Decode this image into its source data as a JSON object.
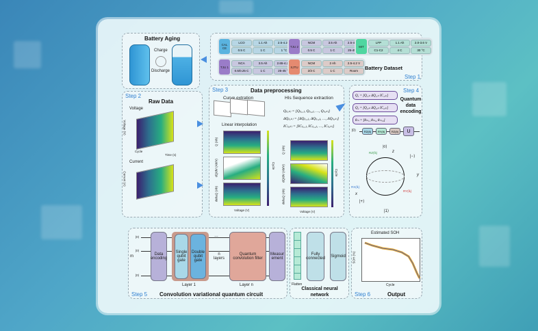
{
  "colors": {
    "accent": "#2f7fd0",
    "arrow": "#4a8fe0",
    "encoding": "#b7b1d9",
    "single_gate": "#a9d8e8",
    "double_gate": "#6bb3df",
    "filter": "#e0a79a",
    "layer_bg": "#c89a8c",
    "nn": "#bfe0e8",
    "flatten": "#b6ead6"
  },
  "step1": {
    "title": "Battery Dataset",
    "step": "Step 1",
    "datasets": [
      {
        "name": "CAL CE",
        "color": "#5ab3df",
        "cells": [
          "LCO",
          "1.1 Ah",
          "2.5-4.2 V",
          "0.5 C",
          "1 C",
          "1 °C"
        ]
      },
      {
        "name": "TJU 2",
        "color": "#9a7cc8",
        "cells": [
          "NCM",
          "3.5 Ah",
          "2.5-4.2 V",
          "0.5 C",
          "1 C",
          "25-45 °C"
        ]
      },
      {
        "name": "MIT",
        "color": "#4fd6a0",
        "cells": [
          "LFP",
          "1.1 Ah",
          "2.0-3.6 V",
          "C1-C2",
          "4 C",
          "30 °C"
        ]
      },
      {
        "name": "TJU 1",
        "color": "#9a7cc8",
        "cells": [
          "NCA",
          "3.5 Ah",
          "2.65-4.2 V",
          "0.5/0.25 C",
          "1 C",
          "25-45 °C"
        ]
      },
      {
        "name": "XJTU",
        "color": "#e58a70",
        "cells": [
          "NCM",
          "2 Ah",
          "2.5-4.2 V",
          "2/3 C",
          "1 C",
          "Room"
        ]
      }
    ]
  },
  "aging": {
    "title": "Battery Aging",
    "charge": "Charge",
    "discharge": "Discharge"
  },
  "step2": {
    "step": "Step 2",
    "title": "Raw Data",
    "voltage": "Voltage",
    "current": "Current",
    "ylabel_v": "Voltage (V)",
    "ylabel_i": "Current (A)",
    "cycle": "Cycle",
    "time": "Time (s)"
  },
  "step3": {
    "step": "Step 3",
    "title": "Data preprocessing",
    "curve": "Curve extration",
    "interp": "Linear interpolation",
    "his": "HIs Sequence extraction",
    "eqs": [
      "Q₍ᵢ,ₖ₎ = [Q₍ᵢ,₁₎, Q₍ᵢ,₂₎, …, Q₍ᵢ,ₖ₎]",
      "ΔQ₍ᵢ,ₖ₎ = [ΔQ₍ᵢ,₁₎, ΔQ₍ᵢ,₂₎, …, ΔQ₍ᵢ,ₖ₎]",
      "IC₍ᵢ,ₖ₎ = [IC₍ᵢ,₁₎, IC₍ᵢ,₂₎, …, IC₍ᵢ,ₖ₎]"
    ],
    "ylabels": [
      "Q (Ah)",
      "dQ/dV (Ah/V)",
      "deltaQ (Ah)"
    ],
    "xlabel": "Voltage (V)",
    "cbar": "Cycle"
  },
  "step4": {
    "step": "Step 4",
    "title": "Quantum data encoding",
    "rows": [
      "Q₁ = [Q₁,ₖ  ΔQ₁,ₖ  IC₁,ₖ]",
      "Q₂ = [Q₂,ₖ  ΔQ₂,ₖ  IC₂,ₖ]",
      "θₘ = [θₘ,₁  θₘ,₂  θₘ,₃]"
    ],
    "ket0": "|0⟩",
    "gates": [
      "RZ(θ)",
      "RY(θ)",
      "RZ(θ)"
    ],
    "u": "U",
    "bloch": {
      "top": "|0⟩",
      "bottom": "|1⟩",
      "minus": "|−⟩",
      "plus": "|+⟩",
      "z": "z",
      "y": "y",
      "x": "x",
      "rz": "RZ(θᵢ)",
      "rx": "RX(θᵢ)",
      "ry": "RY(θᵢ)"
    }
  },
  "step5": {
    "step": "Step 5",
    "title": "Convolution variational quantum circuit",
    "m": "m",
    "ket": "|0⟩",
    "encoding": "Data encoding",
    "single": "Single qubit gate",
    "double": "Double qubit gate",
    "nlayers": "n layers",
    "filter": "Quantum convolution filter",
    "measure": "Measur ement",
    "layer1": "Layer 1",
    "layern": "Layer n",
    "dots": "…"
  },
  "nn": {
    "title": "Classical neural network",
    "flatten": "Flatten",
    "fc": "Fully connected",
    "sigmoid": "Sigmoid"
  },
  "step6": {
    "step": "Step 6",
    "title": "Output",
    "chart_title": "Estimated SOH",
    "ylabel": "SOH (%)",
    "xlabel": "Cycle"
  }
}
